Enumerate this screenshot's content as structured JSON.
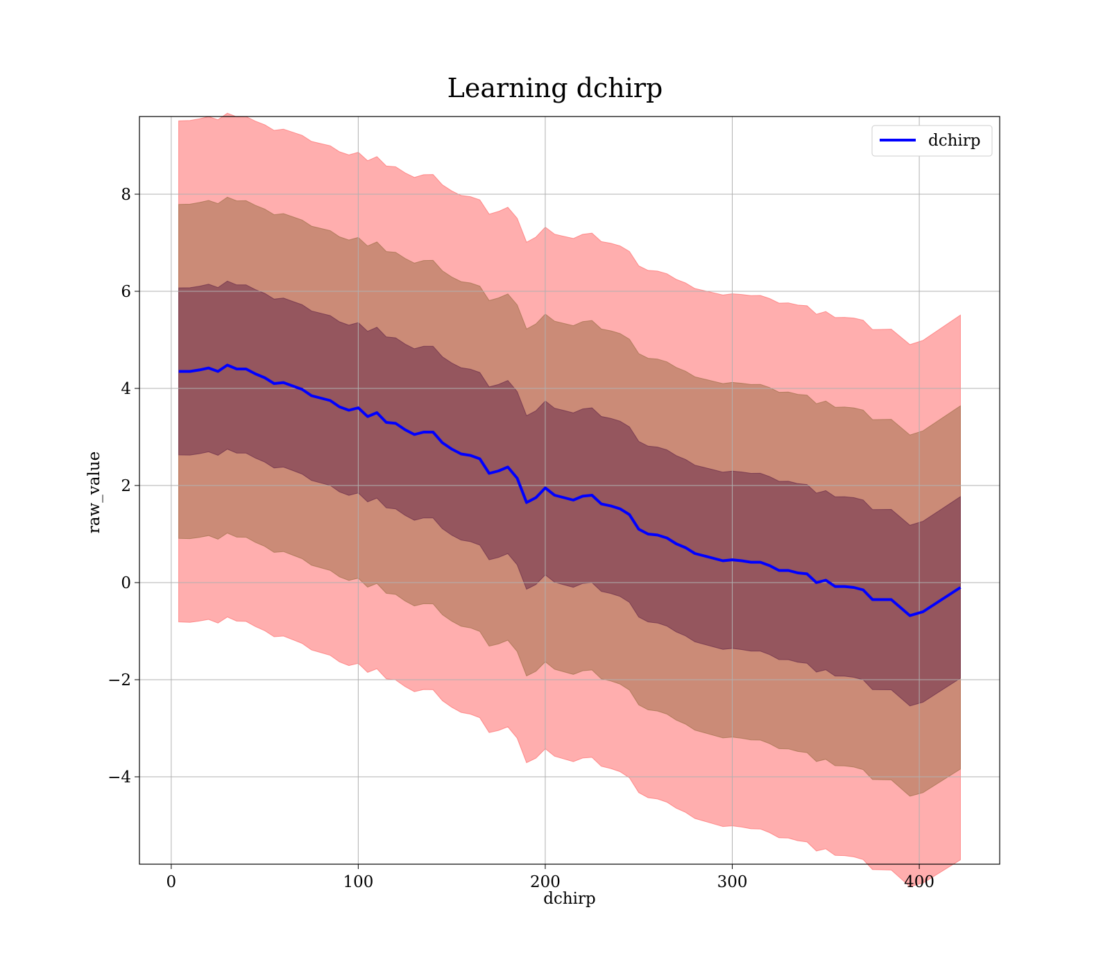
{
  "chart_data": {
    "type": "line",
    "title": "Learning dchirp",
    "xlabel": "dchirp",
    "ylabel": "raw_value",
    "xlim": [
      -17,
      443
    ],
    "ylim": [
      -5.8,
      9.6
    ],
    "x_ticks": [
      0,
      100,
      200,
      300,
      400
    ],
    "y_ticks": [
      -4,
      -2,
      0,
      2,
      4,
      6,
      8
    ],
    "x_tick_labels": [
      "0",
      "100",
      "200",
      "300",
      "400"
    ],
    "y_tick_labels": [
      "−4",
      "−2",
      "0",
      "2",
      "4",
      "6",
      "8"
    ],
    "grid": true,
    "legend": {
      "position": "top-right",
      "entries": [
        "dchirp"
      ]
    },
    "colors": {
      "line": "#0000ff",
      "band_outer": "#ff6b6b",
      "band_middle": "#a0704a",
      "band_inner": "#6a2c4a"
    },
    "series": [
      {
        "name": "dchirp",
        "x": [
          4,
          10,
          15,
          20,
          25,
          30,
          35,
          40,
          45,
          50,
          55,
          60,
          65,
          70,
          75,
          80,
          85,
          90,
          95,
          100,
          105,
          110,
          115,
          120,
          125,
          130,
          135,
          140,
          145,
          150,
          155,
          160,
          165,
          170,
          175,
          180,
          185,
          190,
          195,
          200,
          205,
          210,
          215,
          220,
          225,
          230,
          235,
          240,
          245,
          250,
          255,
          260,
          265,
          270,
          275,
          280,
          285,
          290,
          295,
          300,
          305,
          310,
          315,
          320,
          325,
          330,
          335,
          340,
          345,
          350,
          355,
          360,
          365,
          370,
          375,
          385,
          395,
          402,
          412,
          422
        ],
        "y": [
          4.35,
          4.35,
          4.38,
          4.42,
          4.35,
          4.48,
          4.4,
          4.4,
          4.3,
          4.22,
          4.1,
          4.12,
          4.05,
          3.98,
          3.85,
          3.8,
          3.75,
          3.62,
          3.55,
          3.6,
          3.42,
          3.5,
          3.3,
          3.28,
          3.15,
          3.05,
          3.1,
          3.1,
          2.88,
          2.75,
          2.65,
          2.62,
          2.55,
          2.25,
          2.3,
          2.38,
          2.15,
          1.65,
          1.75,
          1.95,
          1.8,
          1.75,
          1.7,
          1.78,
          1.8,
          1.62,
          1.58,
          1.52,
          1.4,
          1.1,
          1.0,
          0.98,
          0.92,
          0.8,
          0.72,
          0.6,
          0.55,
          0.5,
          0.45,
          0.47,
          0.45,
          0.42,
          0.42,
          0.35,
          0.25,
          0.25,
          0.2,
          0.18,
          0.0,
          0.05,
          -0.08,
          -0.08,
          -0.1,
          -0.15,
          -0.35,
          -0.35,
          -0.68,
          -0.6,
          -0.35,
          -0.1
        ]
      }
    ],
    "bands": [
      {
        "name": "outer",
        "sigma": 3
      },
      {
        "name": "middle",
        "sigma": 2
      },
      {
        "name": "inner",
        "sigma": 1
      }
    ]
  }
}
